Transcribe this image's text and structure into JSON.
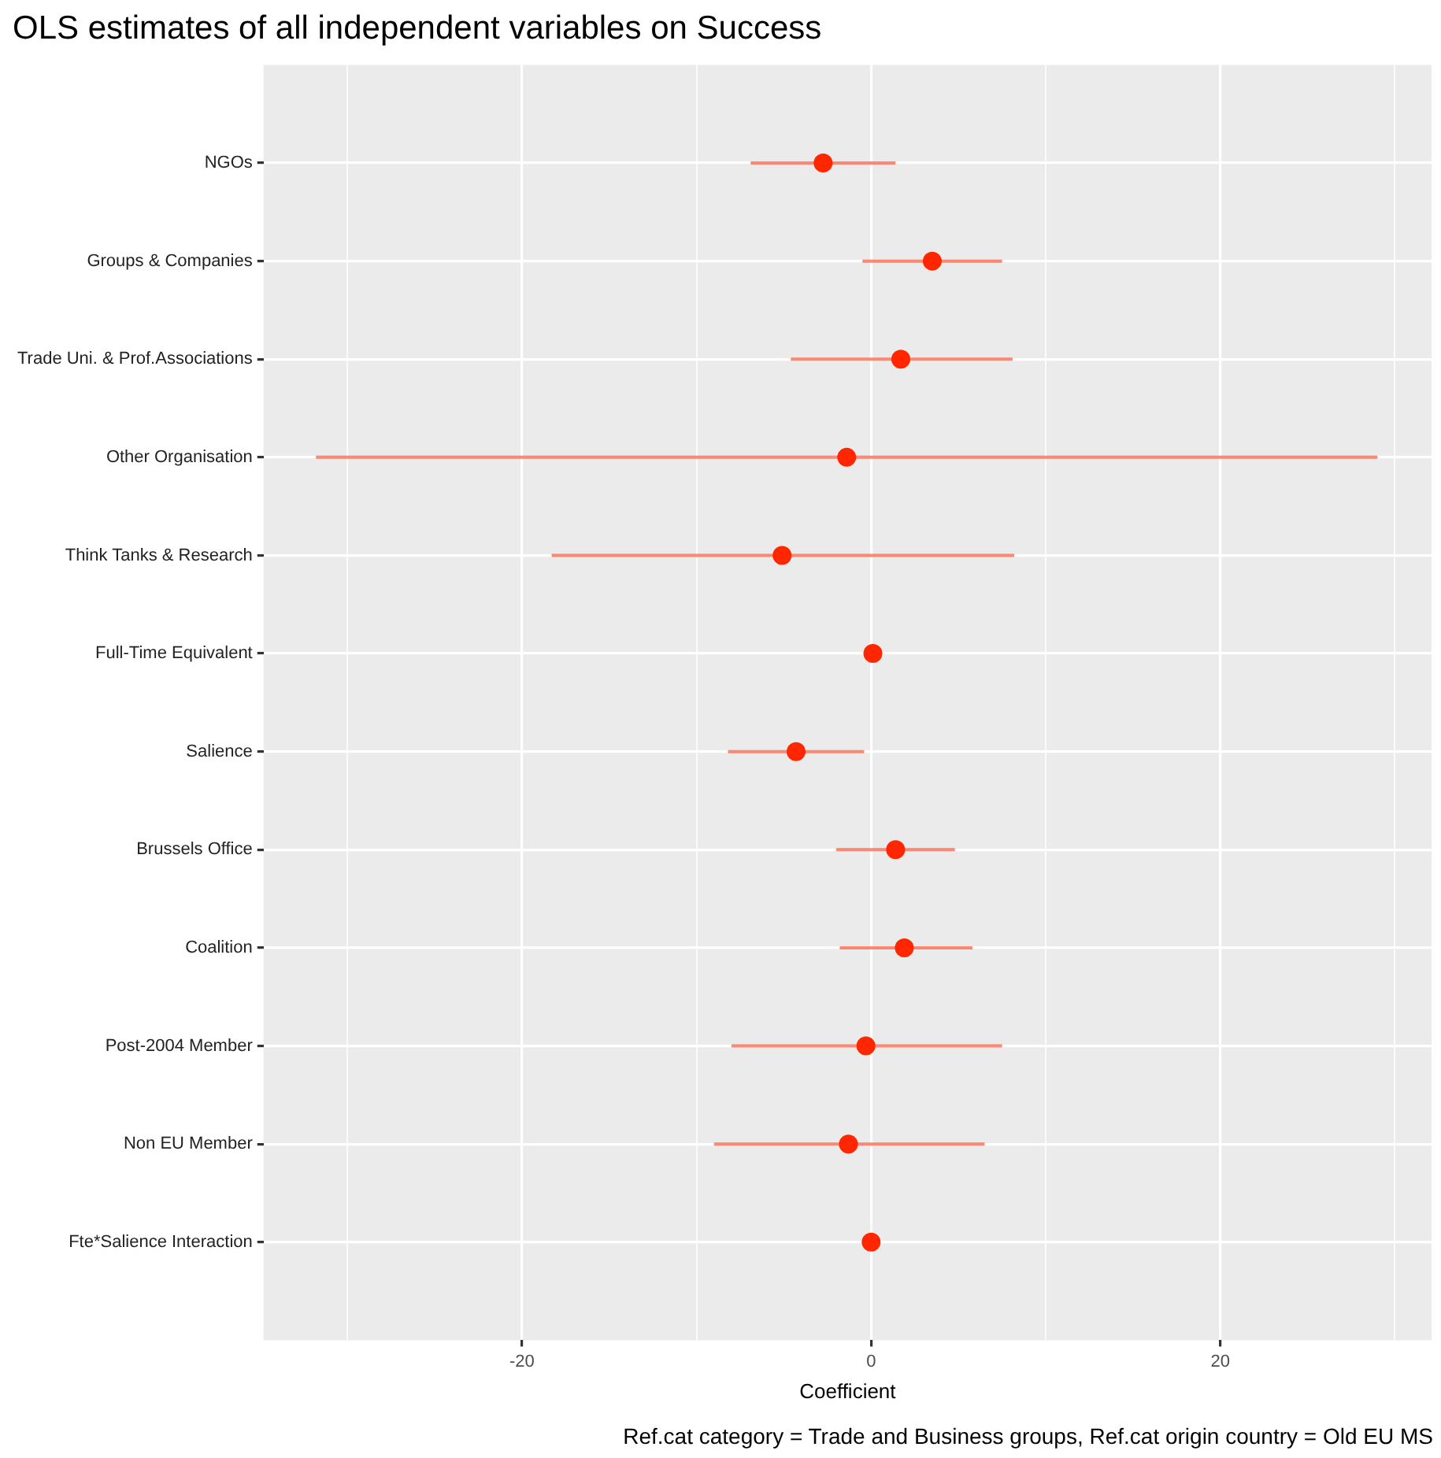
{
  "chart_data": {
    "type": "scatter",
    "orientation": "horizontal",
    "title": "OLS estimates of all independent variables on Success",
    "xlabel": "Coefficient",
    "categories": [
      "NGOs",
      "Groups & Companies",
      "Trade Uni. & Prof.Associations",
      "Other Organisation",
      "Think Tanks & Research",
      "Full-Time Equivalent",
      "Salience",
      "Brussels Office",
      "Coalition",
      "Post-2004 Member",
      "Non EU Member",
      "Fte*Salience Interaction"
    ],
    "values": [
      -2.75,
      3.5,
      1.7,
      -1.4,
      -5.1,
      0.1,
      -4.3,
      1.4,
      1.9,
      -0.3,
      -1.3,
      0.0
    ],
    "errors": [
      [
        -6.9,
        1.4
      ],
      [
        -0.5,
        7.5
      ],
      [
        -4.6,
        8.1
      ],
      [
        -31.8,
        29.0
      ],
      [
        -18.3,
        8.2
      ],
      null,
      [
        -8.2,
        -0.4
      ],
      [
        -2.0,
        4.8
      ],
      [
        -1.8,
        5.8
      ],
      [
        -8.0,
        7.5
      ],
      [
        -9.0,
        6.5
      ],
      null
    ],
    "color": "#ff2600",
    "marker": "circle",
    "grid": true,
    "xlim": [
      -34.8,
      32.1
    ],
    "xticks": [
      {
        "value": -30,
        "label": null
      },
      -20,
      {
        "value": -10,
        "label": null
      },
      0,
      {
        "value": 10,
        "label": null
      },
      20,
      {
        "value": 30,
        "label": null
      }
    ],
    "annotations": [
      "Ref.cat category = Trade and Business groups, Ref.cat origin country = Old EU MS"
    ],
    "legend": false
  }
}
